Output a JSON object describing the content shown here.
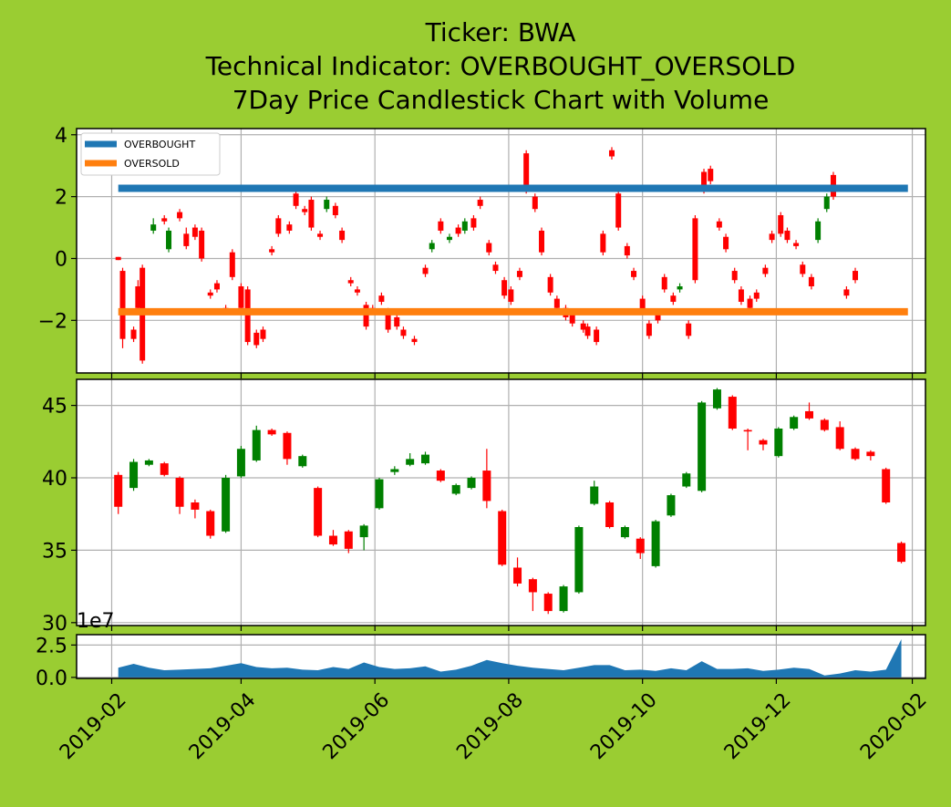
{
  "colors": {
    "background": "#9acd32",
    "up": "#008000",
    "down": "#ff0000",
    "overbought": "#1f77b4",
    "oversold": "#ff7f0e",
    "volume": "#1f77b4",
    "grid": "#b0b0b0"
  },
  "title": {
    "line1": "Ticker: BWA",
    "line2": "Technical Indicator: OVERBOUGHT_OVERSOLD",
    "line3": "7Day Price Candlestick Chart with Volume"
  },
  "chart_data": [
    {
      "type": "candlestick",
      "name": "overbought-oversold-indicator",
      "xlim": [
        "2019-01-16",
        "2020-02-07"
      ],
      "ylim": [
        -3.7,
        4.2
      ],
      "yticks": [
        -2,
        0,
        2,
        4
      ],
      "ytick_labels": [
        "−2",
        "0",
        "2",
        "4"
      ],
      "grid": true,
      "legend_position": "top-left",
      "legend": [
        "OVERBOUGHT",
        "OVERSOLD"
      ],
      "levels": [
        {
          "name": "OVERBOUGHT",
          "value": 2.27
        },
        {
          "name": "OVERSOLD",
          "value": -1.72
        }
      ],
      "candles": [
        [
          "2019-02-04",
          0.05,
          -0.05,
          0.05,
          -0.05
        ],
        [
          "2019-02-06",
          -0.4,
          -2.6,
          -0.3,
          -2.9
        ],
        [
          "2019-02-11",
          -2.3,
          -2.6,
          -2.2,
          -2.7
        ],
        [
          "2019-02-13",
          -0.9,
          -1.6,
          -0.7,
          -1.7
        ],
        [
          "2019-02-15",
          -0.3,
          -3.3,
          -0.2,
          -3.4
        ],
        [
          "2019-02-20",
          0.9,
          1.1,
          1.3,
          0.8
        ],
        [
          "2019-02-25",
          1.3,
          1.2,
          1.4,
          1.1
        ],
        [
          "2019-02-27",
          0.3,
          0.9,
          1.0,
          0.2
        ],
        [
          "2019-03-04",
          1.5,
          1.3,
          1.6,
          1.2
        ],
        [
          "2019-03-07",
          0.8,
          0.4,
          1.0,
          0.3
        ],
        [
          "2019-03-11",
          1.0,
          0.7,
          1.1,
          0.6
        ],
        [
          "2019-03-14",
          0.9,
          0.0,
          1.0,
          -0.1
        ],
        [
          "2019-03-18",
          -1.1,
          -1.2,
          -1.0,
          -1.3
        ],
        [
          "2019-03-21",
          -0.8,
          -1.0,
          -0.7,
          -1.1
        ],
        [
          "2019-03-25",
          -1.6,
          -1.7,
          -1.5,
          -1.8
        ],
        [
          "2019-03-28",
          0.2,
          -0.6,
          0.3,
          -0.7
        ],
        [
          "2019-04-01",
          -0.9,
          -1.6,
          -0.8,
          -1.7
        ],
        [
          "2019-04-04",
          -1.0,
          -2.7,
          -0.9,
          -2.8
        ],
        [
          "2019-04-08",
          -2.4,
          -2.8,
          -2.3,
          -2.9
        ],
        [
          "2019-04-11",
          -2.3,
          -2.6,
          -2.2,
          -2.7
        ],
        [
          "2019-04-15",
          0.3,
          0.2,
          0.4,
          0.1
        ],
        [
          "2019-04-18",
          1.3,
          0.8,
          1.4,
          0.7
        ],
        [
          "2019-04-23",
          1.1,
          0.9,
          1.2,
          0.8
        ],
        [
          "2019-04-26",
          2.1,
          1.7,
          2.2,
          1.6
        ],
        [
          "2019-04-30",
          1.6,
          1.5,
          1.7,
          1.4
        ],
        [
          "2019-05-03",
          1.9,
          1.0,
          2.0,
          0.9
        ],
        [
          "2019-05-07",
          0.8,
          0.7,
          0.9,
          0.6
        ],
        [
          "2019-05-10",
          1.6,
          1.9,
          2.0,
          1.5
        ],
        [
          "2019-05-14",
          1.7,
          1.4,
          1.8,
          1.3
        ],
        [
          "2019-05-17",
          0.9,
          0.6,
          1.0,
          0.5
        ],
        [
          "2019-05-21",
          -0.7,
          -0.8,
          -0.6,
          -0.9
        ],
        [
          "2019-05-24",
          -1.0,
          -1.1,
          -0.9,
          -1.2
        ],
        [
          "2019-05-28",
          -1.5,
          -2.2,
          -1.4,
          -2.3
        ],
        [
          "2019-05-31",
          -1.6,
          -1.7,
          -1.5,
          -1.8
        ],
        [
          "2019-06-04",
          -1.2,
          -1.4,
          -1.1,
          -1.5
        ],
        [
          "2019-06-07",
          -1.7,
          -2.3,
          -1.6,
          -2.4
        ],
        [
          "2019-06-11",
          -1.9,
          -2.2,
          -1.8,
          -2.3
        ],
        [
          "2019-06-14",
          -2.3,
          -2.5,
          -2.2,
          -2.6
        ],
        [
          "2019-06-19",
          -2.6,
          -2.7,
          -2.5,
          -2.8
        ],
        [
          "2019-06-24",
          -0.3,
          -0.5,
          -0.2,
          -0.6
        ],
        [
          "2019-06-27",
          0.3,
          0.5,
          0.6,
          0.2
        ],
        [
          "2019-07-01",
          1.2,
          0.9,
          1.3,
          0.8
        ],
        [
          "2019-07-05",
          0.6,
          0.7,
          0.8,
          0.5
        ],
        [
          "2019-07-09",
          1.0,
          0.8,
          1.1,
          0.7
        ],
        [
          "2019-07-12",
          0.9,
          1.2,
          1.3,
          0.8
        ],
        [
          "2019-07-16",
          1.3,
          1.0,
          1.4,
          0.9
        ],
        [
          "2019-07-19",
          1.9,
          1.7,
          2.0,
          1.6
        ],
        [
          "2019-07-23",
          0.5,
          0.2,
          0.6,
          0.1
        ],
        [
          "2019-07-26",
          -0.2,
          -0.4,
          -0.1,
          -0.5
        ],
        [
          "2019-07-30",
          -0.7,
          -1.2,
          -0.6,
          -1.3
        ],
        [
          "2019-08-02",
          -1.0,
          -1.4,
          -0.9,
          -1.5
        ],
        [
          "2019-08-06",
          -0.4,
          -0.6,
          -0.3,
          -0.7
        ],
        [
          "2019-08-09",
          3.4,
          2.2,
          3.5,
          2.1
        ],
        [
          "2019-08-13",
          2.0,
          1.6,
          2.1,
          1.5
        ],
        [
          "2019-08-16",
          0.9,
          0.2,
          1.0,
          0.1
        ],
        [
          "2019-08-20",
          -0.6,
          -1.1,
          -0.5,
          -1.2
        ],
        [
          "2019-08-23",
          -1.3,
          -1.6,
          -1.2,
          -1.7
        ],
        [
          "2019-08-27",
          -1.6,
          -1.9,
          -1.5,
          -2.0
        ],
        [
          "2019-08-30",
          -1.8,
          -2.1,
          -1.7,
          -2.2
        ],
        [
          "2019-09-04",
          -2.1,
          -2.3,
          -2.0,
          -2.4
        ],
        [
          "2019-09-06",
          -2.2,
          -2.5,
          -2.1,
          -2.6
        ],
        [
          "2019-09-10",
          -2.3,
          -2.7,
          -2.2,
          -2.8
        ],
        [
          "2019-09-13",
          0.8,
          0.2,
          0.9,
          0.1
        ],
        [
          "2019-09-17",
          3.5,
          3.3,
          3.6,
          3.2
        ],
        [
          "2019-09-20",
          2.1,
          1.0,
          2.2,
          0.9
        ],
        [
          "2019-09-24",
          0.4,
          0.1,
          0.5,
          0.0
        ],
        [
          "2019-09-27",
          -0.4,
          -0.6,
          -0.3,
          -0.7
        ],
        [
          "2019-10-01",
          -1.3,
          -1.7,
          -1.2,
          -1.8
        ],
        [
          "2019-10-04",
          -2.1,
          -2.5,
          -2.0,
          -2.6
        ],
        [
          "2019-10-08",
          -1.8,
          -2.0,
          -1.7,
          -2.1
        ],
        [
          "2019-10-11",
          -0.6,
          -1.0,
          -0.5,
          -1.1
        ],
        [
          "2019-10-15",
          -1.2,
          -1.4,
          -1.1,
          -1.5
        ],
        [
          "2019-10-18",
          -1.0,
          -0.9,
          -0.8,
          -1.1
        ],
        [
          "2019-10-22",
          -2.1,
          -2.5,
          -2.0,
          -2.6
        ],
        [
          "2019-10-25",
          1.3,
          -0.7,
          1.4,
          -0.8
        ],
        [
          "2019-10-29",
          2.8,
          2.2,
          2.9,
          2.1
        ],
        [
          "2019-11-01",
          2.9,
          2.5,
          3.0,
          2.4
        ],
        [
          "2019-11-05",
          1.2,
          1.0,
          1.3,
          0.9
        ],
        [
          "2019-11-08",
          0.7,
          0.3,
          0.8,
          0.2
        ],
        [
          "2019-11-12",
          -0.4,
          -0.7,
          -0.3,
          -0.8
        ],
        [
          "2019-11-15",
          -1.0,
          -1.4,
          -0.9,
          -1.5
        ],
        [
          "2019-11-19",
          -1.3,
          -1.6,
          -1.2,
          -1.7
        ],
        [
          "2019-11-22",
          -1.1,
          -1.3,
          -1.0,
          -1.4
        ],
        [
          "2019-11-26",
          -0.3,
          -0.5,
          -0.2,
          -0.6
        ],
        [
          "2019-11-29",
          0.8,
          0.6,
          0.9,
          0.5
        ],
        [
          "2019-12-03",
          1.4,
          0.8,
          1.5,
          0.7
        ],
        [
          "2019-12-06",
          0.9,
          0.6,
          1.0,
          0.5
        ],
        [
          "2019-12-10",
          0.5,
          0.4,
          0.6,
          0.3
        ],
        [
          "2019-12-13",
          -0.2,
          -0.5,
          -0.1,
          -0.6
        ],
        [
          "2019-12-17",
          -0.6,
          -0.9,
          -0.5,
          -1.0
        ],
        [
          "2019-12-20",
          0.6,
          1.2,
          1.3,
          0.5
        ],
        [
          "2019-12-24",
          1.6,
          2.0,
          2.1,
          1.5
        ],
        [
          "2019-12-27",
          2.7,
          2.0,
          2.8,
          1.9
        ],
        [
          "2020-01-02",
          -1.0,
          -1.2,
          -0.9,
          -1.3
        ],
        [
          "2020-01-06",
          -0.4,
          -0.7,
          -0.3,
          -0.8
        ]
      ]
    },
    {
      "type": "candlestick",
      "name": "price",
      "xlim": [
        "2019-01-16",
        "2020-02-07"
      ],
      "ylim": [
        29.8,
        46.8
      ],
      "yticks": [
        30,
        35,
        40,
        45
      ],
      "ytick_labels": [
        "30",
        "35",
        "40",
        "45"
      ],
      "grid": true,
      "candles": [
        [
          "2019-02-04",
          40.2,
          38.0,
          40.4,
          37.5
        ],
        [
          "2019-02-11",
          39.3,
          41.1,
          41.3,
          39.1
        ],
        [
          "2019-02-18",
          40.9,
          41.2,
          41.3,
          40.8
        ],
        [
          "2019-02-25",
          41.0,
          40.2,
          41.1,
          40.1
        ],
        [
          "2019-03-04",
          40.0,
          38.0,
          40.1,
          37.5
        ],
        [
          "2019-03-11",
          38.3,
          37.8,
          38.5,
          37.2
        ],
        [
          "2019-03-18",
          37.7,
          36.0,
          37.8,
          35.8
        ],
        [
          "2019-03-25",
          36.3,
          40.0,
          40.2,
          36.2
        ],
        [
          "2019-04-01",
          40.1,
          42.0,
          42.2,
          40.0
        ],
        [
          "2019-04-08",
          41.2,
          43.3,
          43.6,
          41.1
        ],
        [
          "2019-04-15",
          43.3,
          43.0,
          43.4,
          42.9
        ],
        [
          "2019-04-22",
          43.1,
          41.3,
          43.2,
          40.9
        ],
        [
          "2019-04-29",
          40.8,
          41.5,
          41.6,
          40.7
        ],
        [
          "2019-05-06",
          39.3,
          36.0,
          39.4,
          35.9
        ],
        [
          "2019-05-13",
          36.0,
          35.4,
          36.4,
          35.3
        ],
        [
          "2019-05-20",
          36.3,
          35.1,
          36.4,
          34.8
        ],
        [
          "2019-05-27",
          35.9,
          36.7,
          36.8,
          35.0
        ],
        [
          "2019-06-03",
          37.9,
          39.9,
          40.0,
          37.8
        ],
        [
          "2019-06-10",
          40.4,
          40.6,
          40.8,
          40.2
        ],
        [
          "2019-06-17",
          40.9,
          41.3,
          41.7,
          40.8
        ],
        [
          "2019-06-24",
          41.0,
          41.6,
          41.8,
          40.9
        ],
        [
          "2019-07-01",
          40.5,
          39.8,
          40.6,
          39.7
        ],
        [
          "2019-07-08",
          38.9,
          39.5,
          39.6,
          38.8
        ],
        [
          "2019-07-15",
          39.3,
          40.0,
          40.1,
          39.2
        ],
        [
          "2019-07-22",
          40.5,
          38.4,
          42.0,
          37.9
        ],
        [
          "2019-07-29",
          37.7,
          34.0,
          37.8,
          33.9
        ],
        [
          "2019-08-05",
          33.8,
          32.7,
          34.5,
          32.5
        ],
        [
          "2019-08-12",
          33.0,
          32.1,
          33.1,
          30.8
        ],
        [
          "2019-08-19",
          32.0,
          30.8,
          32.1,
          30.6
        ],
        [
          "2019-08-26",
          30.8,
          32.5,
          32.6,
          30.7
        ],
        [
          "2019-09-02",
          32.1,
          36.6,
          36.7,
          32.0
        ],
        [
          "2019-09-09",
          38.2,
          39.4,
          39.8,
          38.1
        ],
        [
          "2019-09-16",
          38.3,
          36.6,
          38.4,
          36.5
        ],
        [
          "2019-09-23",
          35.9,
          36.6,
          36.7,
          35.8
        ],
        [
          "2019-09-30",
          35.8,
          34.8,
          35.9,
          34.4
        ],
        [
          "2019-10-07",
          33.9,
          37.0,
          37.1,
          33.8
        ],
        [
          "2019-10-14",
          37.4,
          38.8,
          38.9,
          37.3
        ],
        [
          "2019-10-21",
          39.4,
          40.3,
          40.4,
          39.3
        ],
        [
          "2019-10-28",
          39.1,
          45.2,
          45.3,
          39.0
        ],
        [
          "2019-11-04",
          44.8,
          46.1,
          46.2,
          44.7
        ],
        [
          "2019-11-11",
          45.6,
          43.4,
          45.7,
          43.3
        ],
        [
          "2019-11-18",
          43.3,
          43.2,
          43.4,
          41.9
        ],
        [
          "2019-11-25",
          42.6,
          42.3,
          42.7,
          41.9
        ],
        [
          "2019-12-02",
          41.5,
          43.4,
          43.5,
          41.4
        ],
        [
          "2019-12-09",
          43.4,
          44.2,
          44.3,
          43.3
        ],
        [
          "2019-12-16",
          44.6,
          44.1,
          45.2,
          44.0
        ],
        [
          "2019-12-23",
          44.0,
          43.3,
          44.1,
          43.2
        ],
        [
          "2019-12-30",
          43.5,
          42.0,
          43.9,
          41.9
        ],
        [
          "2020-01-06",
          42.0,
          41.3,
          42.1,
          41.2
        ],
        [
          "2020-01-13",
          41.8,
          41.5,
          41.9,
          41.2
        ],
        [
          "2020-01-20",
          40.6,
          38.3,
          40.7,
          38.2
        ],
        [
          "2020-01-27",
          35.5,
          34.2,
          35.6,
          34.1
        ]
      ]
    },
    {
      "type": "area",
      "name": "volume",
      "xlim": [
        "2019-01-16",
        "2020-02-07"
      ],
      "ylim": [
        -0.08,
        3.3
      ],
      "yticks": [
        0.0,
        2.5
      ],
      "ytick_labels": [
        "0.0",
        "2.5"
      ],
      "offset_label": "1e7",
      "grid": true,
      "x": [
        "2019-02-04",
        "2019-02-11",
        "2019-02-18",
        "2019-02-25",
        "2019-03-04",
        "2019-03-11",
        "2019-03-18",
        "2019-03-25",
        "2019-04-01",
        "2019-04-08",
        "2019-04-15",
        "2019-04-22",
        "2019-04-29",
        "2019-05-06",
        "2019-05-13",
        "2019-05-20",
        "2019-05-27",
        "2019-06-03",
        "2019-06-10",
        "2019-06-17",
        "2019-06-24",
        "2019-07-01",
        "2019-07-08",
        "2019-07-15",
        "2019-07-22",
        "2019-07-29",
        "2019-08-05",
        "2019-08-12",
        "2019-08-19",
        "2019-08-26",
        "2019-09-02",
        "2019-09-09",
        "2019-09-16",
        "2019-09-23",
        "2019-09-30",
        "2019-10-07",
        "2019-10-14",
        "2019-10-21",
        "2019-10-28",
        "2019-11-04",
        "2019-11-11",
        "2019-11-18",
        "2019-11-25",
        "2019-12-02",
        "2019-12-09",
        "2019-12-16",
        "2019-12-23",
        "2019-12-30",
        "2020-01-06",
        "2020-01-13",
        "2020-01-20",
        "2020-01-27"
      ],
      "values": [
        0.75,
        1.05,
        0.75,
        0.55,
        0.6,
        0.65,
        0.7,
        0.9,
        1.1,
        0.8,
        0.7,
        0.75,
        0.6,
        0.55,
        0.8,
        0.65,
        1.15,
        0.8,
        0.65,
        0.7,
        0.85,
        0.45,
        0.6,
        0.9,
        1.35,
        1.1,
        0.9,
        0.75,
        0.65,
        0.55,
        0.75,
        0.95,
        0.95,
        0.55,
        0.6,
        0.5,
        0.7,
        0.55,
        1.25,
        0.65,
        0.65,
        0.7,
        0.5,
        0.6,
        0.75,
        0.65,
        0.15,
        0.3,
        0.55,
        0.45,
        0.6,
        2.95
      ]
    }
  ],
  "x_axis": {
    "ticks": [
      "2019-02-01",
      "2019-04-01",
      "2019-06-01",
      "2019-08-01",
      "2019-10-01",
      "2019-12-01",
      "2020-02-01"
    ],
    "labels": [
      "2019-02",
      "2019-04",
      "2019-06",
      "2019-08",
      "2019-10",
      "2019-12",
      "2020-02"
    ]
  }
}
